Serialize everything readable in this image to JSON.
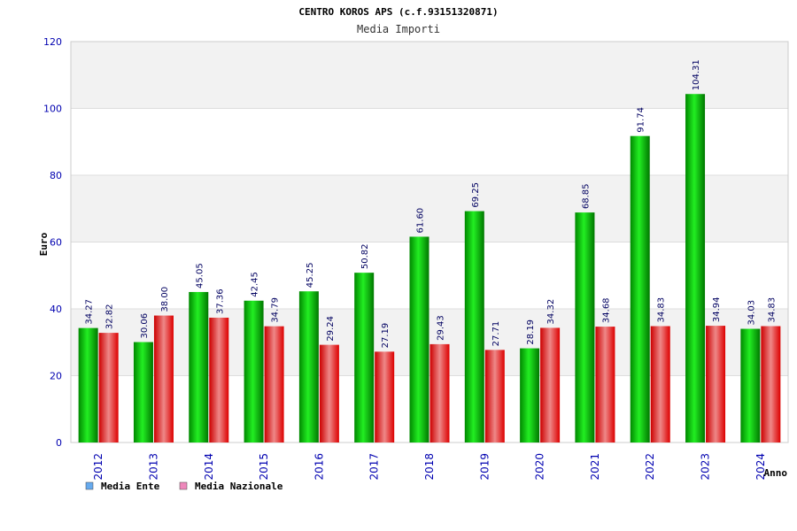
{
  "chart_data": {
    "type": "bar",
    "title": "CENTRO KOROS APS (c.f.93151320871)",
    "subtitle": "Media Importi",
    "xlabel": "Anno",
    "ylabel": "Euro",
    "ylim": [
      0,
      120
    ],
    "yticks": [
      0,
      20,
      40,
      60,
      80,
      100,
      120
    ],
    "grid": true,
    "legend_position": "bottom-left",
    "categories": [
      "2012",
      "2013",
      "2014",
      "2015",
      "2016",
      "2017",
      "2018",
      "2019",
      "2020",
      "2021",
      "2022",
      "2023",
      "2024"
    ],
    "series": [
      {
        "name": "Media Ente",
        "color": "#00cc00",
        "legend_color": "#66aaee",
        "values": [
          34.27,
          30.06,
          45.05,
          42.45,
          45.25,
          50.82,
          61.6,
          69.25,
          28.19,
          68.85,
          91.74,
          104.31,
          34.03
        ],
        "labels": [
          "34.27",
          "30.06",
          "45.05",
          "42.45",
          "45.25",
          "50.82",
          "61.60",
          "69.25",
          "28.19",
          "68.85",
          "91.74",
          "104.31",
          "34.03"
        ]
      },
      {
        "name": "Media Nazionale",
        "color": "#ee1122",
        "legend_color": "#ee88bb",
        "values": [
          32.82,
          38.0,
          37.36,
          34.79,
          29.24,
          27.19,
          29.43,
          27.71,
          34.32,
          34.68,
          34.83,
          34.94,
          34.83
        ],
        "labels": [
          "32.82",
          "38.00",
          "37.36",
          "34.79",
          "29.24",
          "27.19",
          "29.43",
          "27.71",
          "34.32",
          "34.68",
          "34.83",
          "34.94",
          "34.83"
        ]
      }
    ]
  }
}
